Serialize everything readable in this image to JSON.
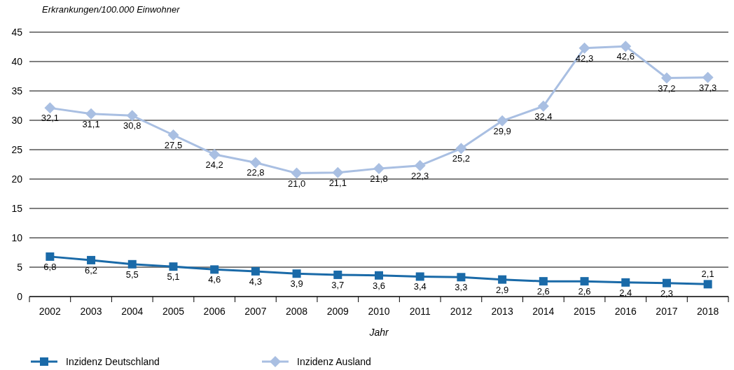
{
  "chart_data": {
    "type": "line",
    "ylabel": "Erkrankungen/100.000 Einwohner",
    "xlabel": "Jahr",
    "categories": [
      "2002",
      "2003",
      "2004",
      "2005",
      "2006",
      "2007",
      "2008",
      "2009",
      "2010",
      "2011",
      "2012",
      "2013",
      "2014",
      "2015",
      "2016",
      "2017",
      "2018"
    ],
    "ylim": [
      0,
      45
    ],
    "yticks": [
      0,
      5,
      10,
      15,
      20,
      25,
      30,
      35,
      40,
      45
    ],
    "grid": "y",
    "legend": "bottom left",
    "series": [
      {
        "name": "Inzidenz Deutschland",
        "color": "#1a6aa8",
        "marker": "square",
        "values": [
          6.8,
          6.2,
          5.5,
          5.1,
          4.6,
          4.3,
          3.9,
          3.7,
          3.6,
          3.4,
          3.3,
          2.9,
          2.6,
          2.6,
          2.4,
          2.3,
          2.1
        ],
        "value_labels": [
          "6,8",
          "6,2",
          "5,5",
          "5,1",
          "4,6",
          "4,3",
          "3,9",
          "3,7",
          "3,6",
          "3,4",
          "3,3",
          "2,9",
          "2,6",
          "2,6",
          "2,4",
          "2,3",
          "2,1"
        ]
      },
      {
        "name": "Inzidenz Ausland",
        "color": "#a9bfe2",
        "marker": "diamond",
        "values": [
          32.1,
          31.1,
          30.8,
          27.5,
          24.2,
          22.8,
          21.0,
          21.1,
          21.8,
          22.3,
          25.2,
          29.9,
          32.4,
          42.3,
          42.6,
          37.2,
          37.3
        ],
        "value_labels": [
          "32,1",
          "31,1",
          "30,8",
          "27,5",
          "24,2",
          "22,8",
          "21,0",
          "21,1",
          "21,8",
          "22,3",
          "25,2",
          "29,9",
          "32,4",
          "42,3",
          "42,6",
          "37,2",
          "37,3"
        ]
      }
    ]
  }
}
